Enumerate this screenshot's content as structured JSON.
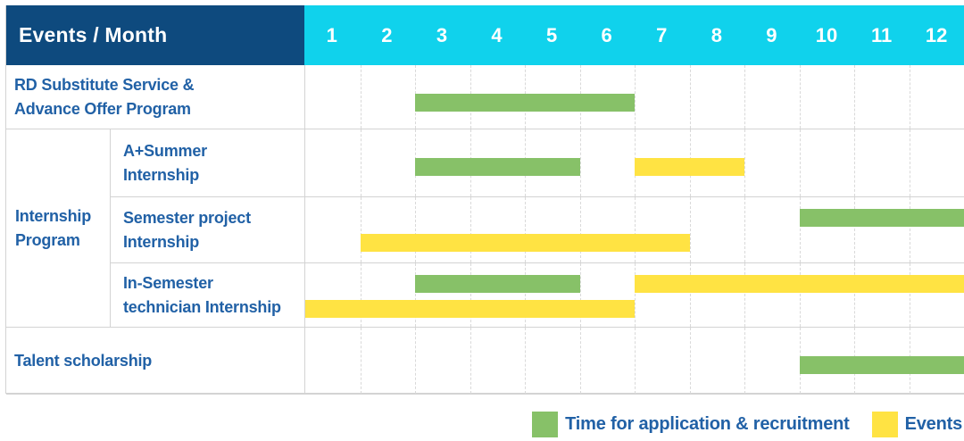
{
  "colors": {
    "header_navy": "#0E4A7E",
    "header_cyan": "#10D2EC",
    "bar_green": "#87C168",
    "bar_yellow": "#FFE343",
    "label_blue": "#2161A6",
    "grid_line": "#D9D9D9",
    "border": "#D3D3D3"
  },
  "table": {
    "header": {
      "label": "Events / Month",
      "months": [
        "1",
        "2",
        "3",
        "4",
        "5",
        "6",
        "7",
        "8",
        "9",
        "10",
        "11",
        "12"
      ]
    },
    "rows": [
      {
        "type": "simple",
        "name": "rd-substitute-service",
        "label_lines": [
          "RD Substitute Service &",
          "Advance Offer Program"
        ],
        "bars": [
          {
            "color": "green",
            "start_month": 3,
            "end_month": 6,
            "lane": "single"
          }
        ]
      },
      {
        "type": "group",
        "name": "internship-program",
        "group_label_lines": [
          "Internship",
          "Program"
        ],
        "children": [
          {
            "name": "a-plus-summer-internship",
            "label_lines": [
              "A+Summer",
              "Internship"
            ],
            "bars": [
              {
                "color": "green",
                "start_month": 3,
                "end_month": 5,
                "lane": "single"
              },
              {
                "color": "yellow",
                "start_month": 7,
                "end_month": 8,
                "lane": "single"
              }
            ]
          },
          {
            "name": "semester-project-internship",
            "label_lines": [
              "Semester project",
              "Internship"
            ],
            "bars": [
              {
                "color": "green",
                "start_month": 10,
                "end_month": 12,
                "lane": "upper"
              },
              {
                "color": "yellow",
                "start_month": 2,
                "end_month": 7,
                "lane": "lower"
              }
            ]
          },
          {
            "name": "in-semester-technician-internship",
            "label_lines": [
              "In-Semester",
              "technician Internship"
            ],
            "bars": [
              {
                "color": "green",
                "start_month": 3,
                "end_month": 5,
                "lane": "upper"
              },
              {
                "color": "yellow",
                "start_month": 7,
                "end_month": 12,
                "lane": "upper"
              },
              {
                "color": "yellow",
                "start_month": 1,
                "end_month": 6,
                "lane": "lower"
              }
            ]
          }
        ]
      },
      {
        "type": "simple",
        "name": "talent-scholarship",
        "label_lines": [
          "Talent scholarship"
        ],
        "bars": [
          {
            "color": "green",
            "start_month": 10,
            "end_month": 12,
            "lane": "single"
          }
        ]
      }
    ]
  },
  "legend": {
    "items": [
      {
        "color": "green",
        "label": "Time for application & recruitment"
      },
      {
        "color": "yellow",
        "label": "Events"
      }
    ]
  },
  "chart_data": {
    "type": "bar",
    "subtype": "gantt",
    "title": "Events / Month",
    "x_axis": {
      "label": "Month",
      "ticks": [
        1,
        2,
        3,
        4,
        5,
        6,
        7,
        8,
        9,
        10,
        11,
        12
      ],
      "range": [
        1,
        12
      ]
    },
    "grid": "vertical-dashed",
    "legend_entries": [
      "Time for application & recruitment",
      "Events"
    ],
    "legend_position": "bottom-right",
    "rows": [
      {
        "category": "RD Substitute Service & Advance Offer Program",
        "segments": [
          {
            "series": "Time for application & recruitment",
            "start_month": 3,
            "end_month": 6
          }
        ]
      },
      {
        "category": "Internship Program - A+Summer Internship",
        "segments": [
          {
            "series": "Time for application & recruitment",
            "start_month": 3,
            "end_month": 5
          },
          {
            "series": "Events",
            "start_month": 7,
            "end_month": 8
          }
        ]
      },
      {
        "category": "Internship Program - Semester project Internship",
        "segments": [
          {
            "series": "Time for application & recruitment",
            "start_month": 10,
            "end_month": 12
          },
          {
            "series": "Events",
            "start_month": 2,
            "end_month": 7
          }
        ]
      },
      {
        "category": "Internship Program - In-Semester technician Internship",
        "segments": [
          {
            "series": "Time for application & recruitment",
            "start_month": 3,
            "end_month": 5
          },
          {
            "series": "Events",
            "start_month": 7,
            "end_month": 12
          },
          {
            "series": "Events",
            "start_month": 1,
            "end_month": 6
          }
        ]
      },
      {
        "category": "Talent scholarship",
        "segments": [
          {
            "series": "Time for application & recruitment",
            "start_month": 10,
            "end_month": 12
          }
        ]
      }
    ]
  }
}
